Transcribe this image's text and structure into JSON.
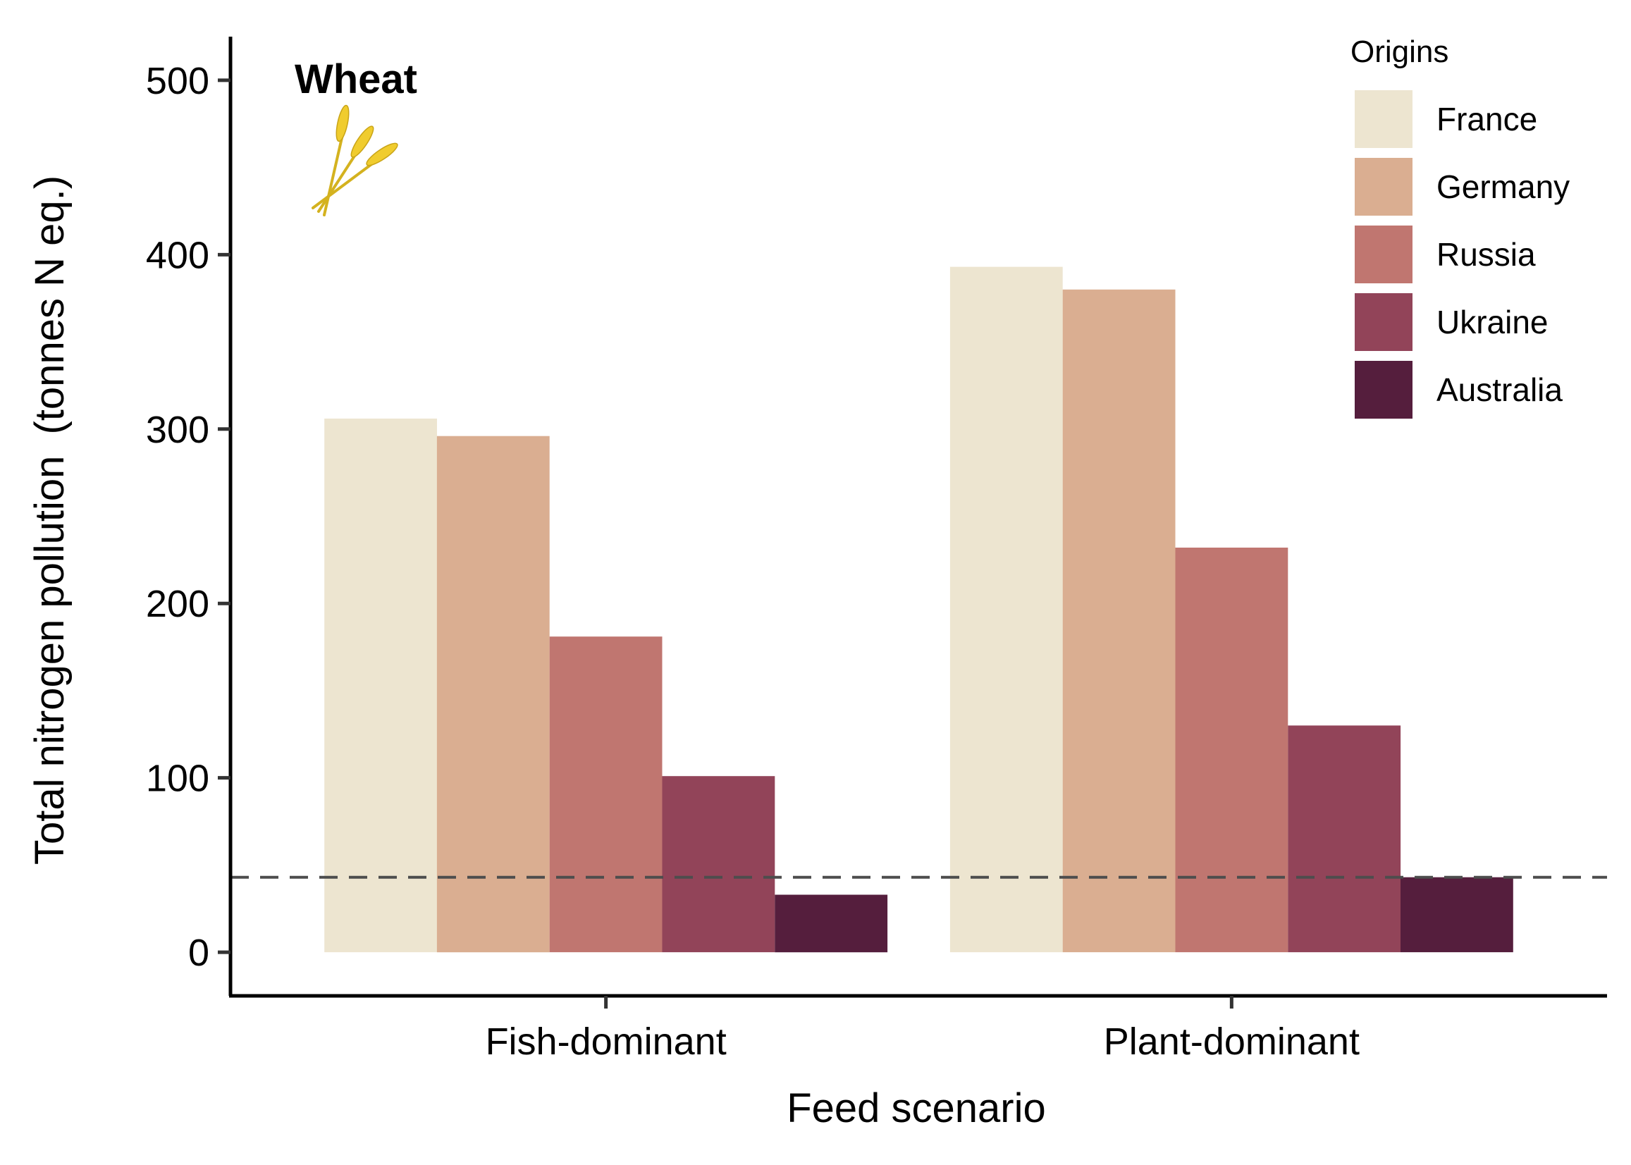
{
  "chart_data": {
    "type": "bar",
    "title": "",
    "annotation": "Wheat",
    "annotation_icon": "wheat-icon",
    "xlabel": "Feed scenario",
    "ylabel": "Total nitrogen pollution",
    "ylabel_unit": "(tonnes N eq.)",
    "categories": [
      "Fish-dominant",
      "Plant-dominant"
    ],
    "ylim": [
      -25,
      525
    ],
    "yticks": [
      0,
      100,
      200,
      300,
      400,
      500
    ],
    "grid": false,
    "legend": {
      "title": "Origins",
      "position": "top-right"
    },
    "reference_line": {
      "y": 43,
      "style": "dashed",
      "color": "#4d4d4d"
    },
    "series": [
      {
        "name": "France",
        "color": "#ede5d0",
        "values": [
          306,
          393
        ]
      },
      {
        "name": "Germany",
        "color": "#daae91",
        "values": [
          296,
          380
        ]
      },
      {
        "name": "Russia",
        "color": "#c07670",
        "values": [
          181,
          232
        ]
      },
      {
        "name": "Ukraine",
        "color": "#924459",
        "values": [
          101,
          130
        ]
      },
      {
        "name": "Australia",
        "color": "#551e3d",
        "values": [
          33,
          43
        ]
      }
    ]
  }
}
